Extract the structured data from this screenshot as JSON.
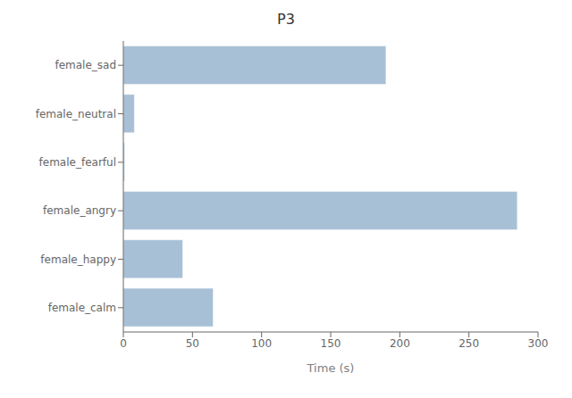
{
  "chart_data": {
    "type": "bar",
    "title": "P3",
    "categories": [
      "female_sad",
      "female_neutral",
      "female_fearful",
      "female_angry",
      "female_happy",
      "female_calm"
    ],
    "values": [
      190,
      8,
      1,
      285,
      43,
      65
    ],
    "color": "#a8c0d6",
    "orientation": "horizontal",
    "xlabel": "Time (s)",
    "xlim": [
      0,
      300
    ],
    "xticks": [
      0,
      50,
      100,
      150,
      200,
      250,
      300
    ],
    "grid": false
  }
}
